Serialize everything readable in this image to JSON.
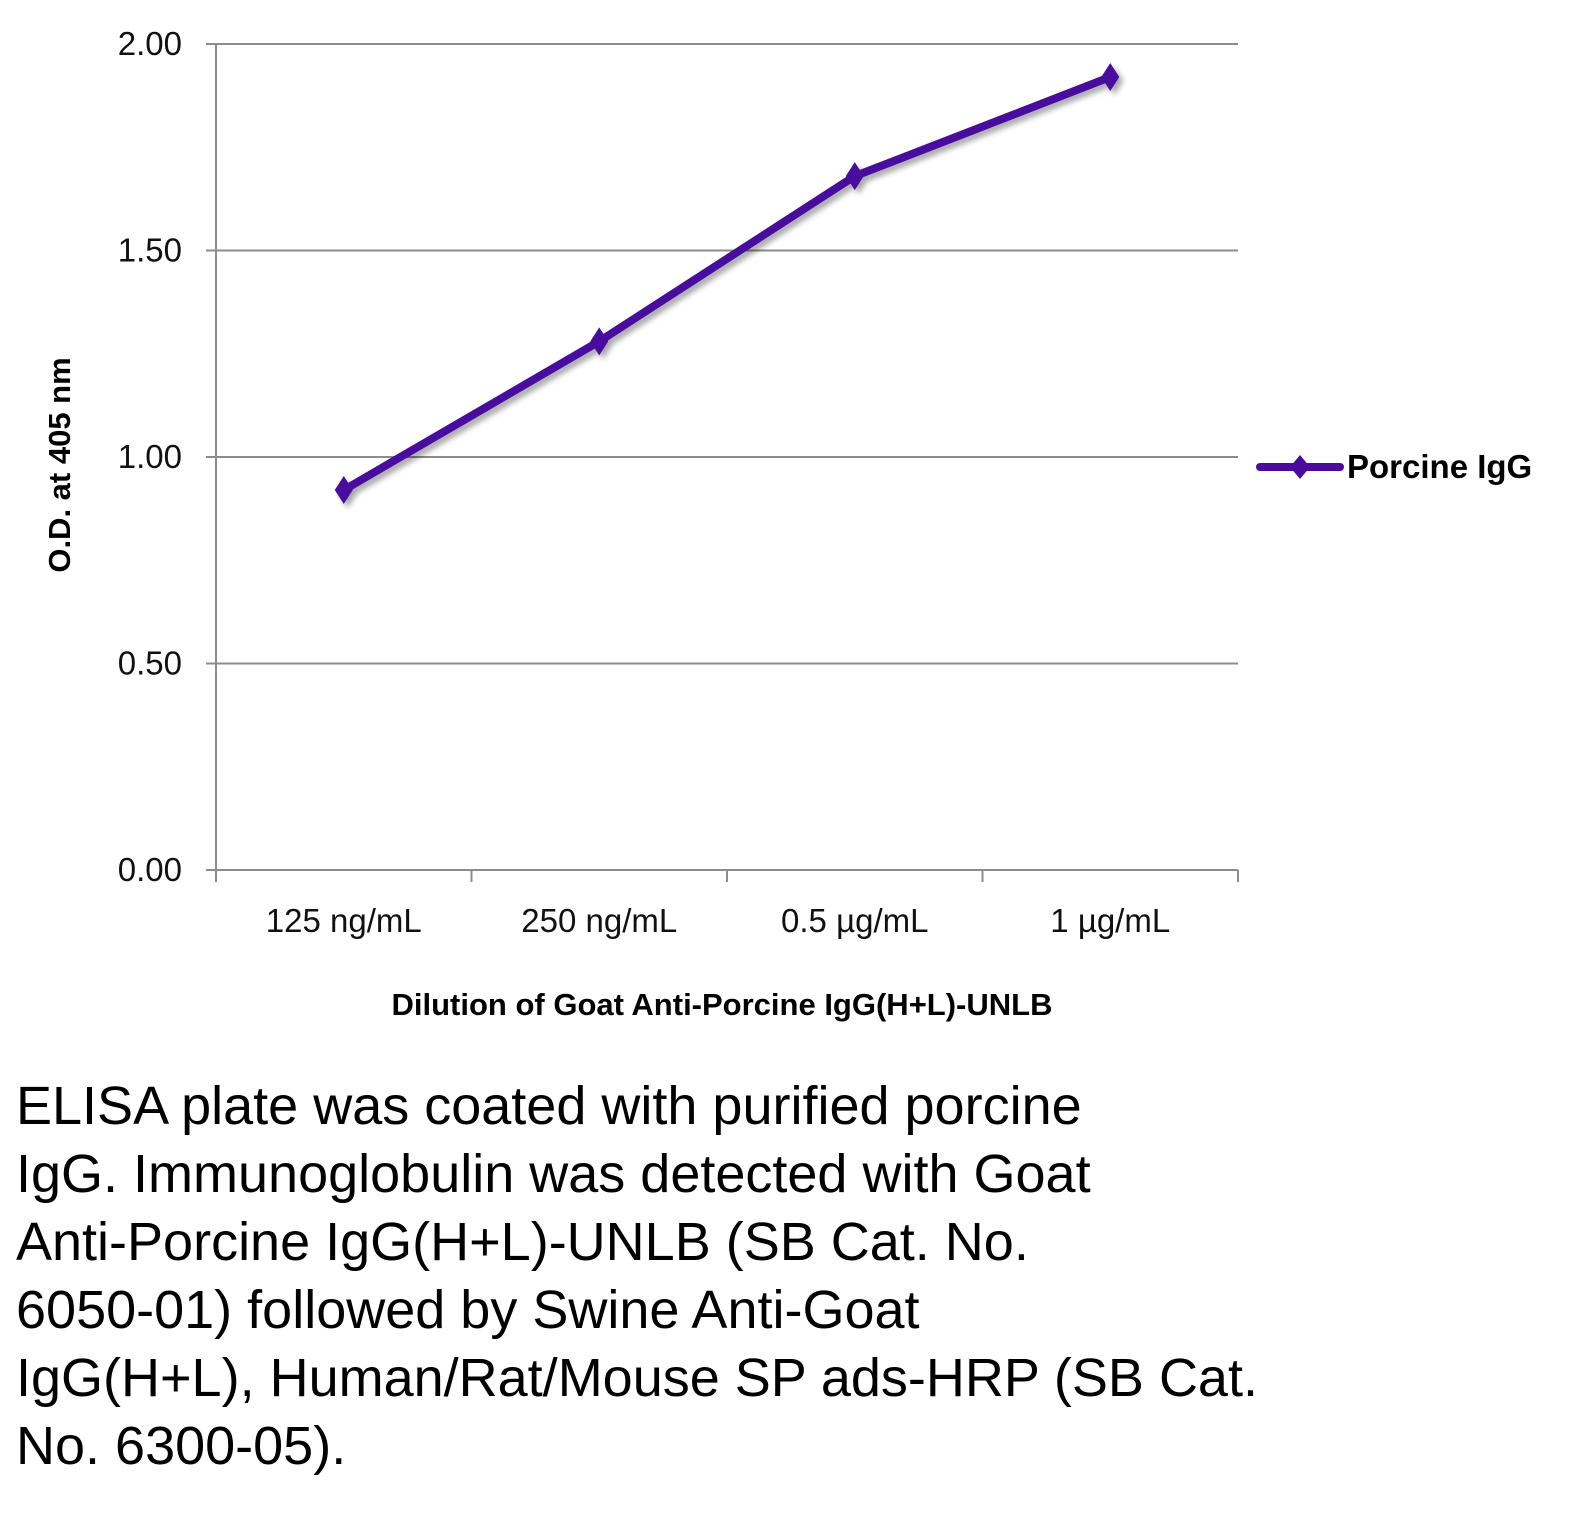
{
  "chart_data": {
    "type": "line",
    "title": "",
    "xlabel": "Dilution of Goat Anti-Porcine IgG(H+L)-UNLB",
    "ylabel": "O.D. at 405 nm",
    "categories": [
      "125 ng/mL",
      "250 ng/mL",
      "0.5 µg/mL",
      "1 µg/mL"
    ],
    "series": [
      {
        "name": "Porcine IgG",
        "values": [
          0.92,
          1.28,
          1.68,
          1.92
        ],
        "color": "#4a0a9e",
        "marker": "diamond"
      }
    ],
    "ylim": [
      0,
      2
    ],
    "yticks": [
      "0.00",
      "0.50",
      "1.00",
      "1.50",
      "2.00"
    ],
    "grid": true,
    "legend": "right"
  },
  "caption": {
    "lines": [
      "ELISA plate was coated with purified porcine",
      "IgG.  Immunoglobulin was detected with Goat",
      "Anti-Porcine IgG(H+L)-UNLB (SB Cat. No.",
      "6050-01) followed by Swine Anti-Goat",
      "IgG(H+L), Human/Rat/Mouse SP ads-HRP (SB Cat.",
      "No. 6300-05)."
    ]
  }
}
